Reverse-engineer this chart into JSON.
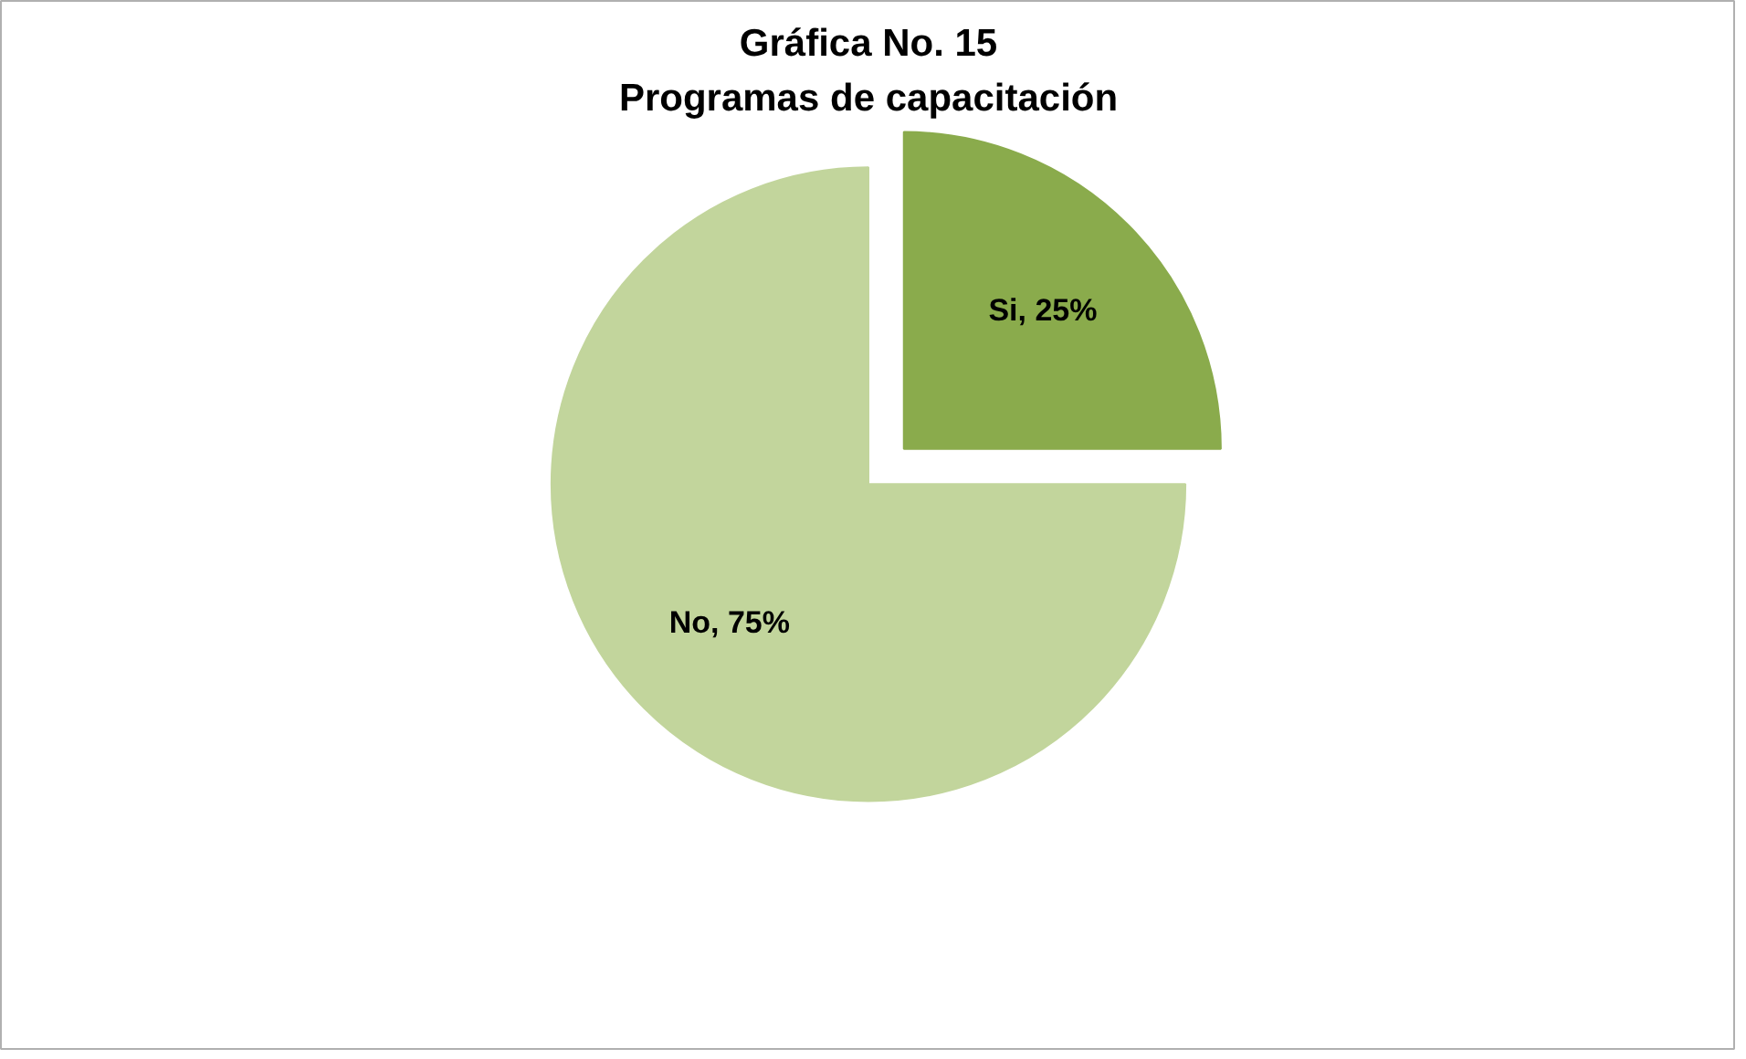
{
  "chart_data": {
    "type": "pie",
    "title": "Gráfica No. 15\nProgramas de capacitación",
    "categories": [
      "Si",
      "No"
    ],
    "values": [
      25,
      75
    ],
    "colors": [
      "#8aab4c",
      "#c2d59c"
    ],
    "value_labels": [
      "25%",
      "75%"
    ]
  }
}
